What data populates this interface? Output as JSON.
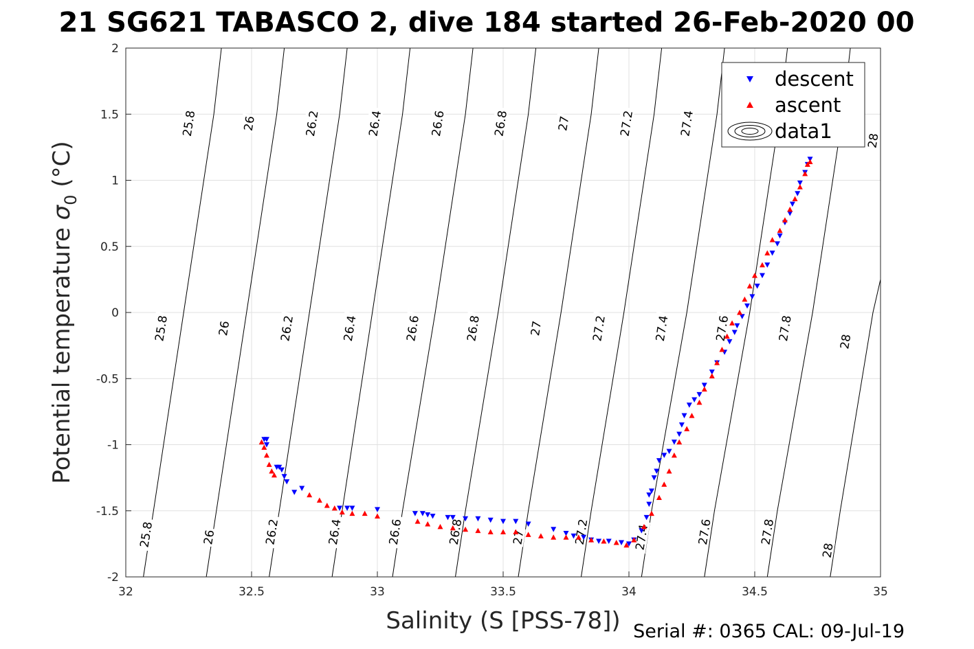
{
  "chart_data": {
    "type": "scatter",
    "title": "21 SG621 TABASCO 2, dive 184 started 26-Feb-2020 00",
    "xlabel": "Salinity (S [PSS-78])",
    "ylabel": "Potential temperature σ_0 (°C)",
    "ylabel_main": "Potential temperature ",
    "ylabel_sigma": "σ",
    "ylabel_sub": "0",
    "ylabel_unit": " (°C)",
    "xlim": [
      32,
      35
    ],
    "ylim": [
      -2,
      2
    ],
    "xticks": [
      "32",
      "32.5",
      "33",
      "33.5",
      "34",
      "34.5",
      "35"
    ],
    "yticks": [
      "-2",
      "-1.5",
      "-1",
      "-0.5",
      "0",
      "0.5",
      "1",
      "1.5",
      "2"
    ],
    "grid": true,
    "legend_position": "top-right",
    "legend": [
      "descent",
      "ascent",
      "data1"
    ],
    "footer": "Serial #: 0365  CAL: 09-Jul-19",
    "colors": {
      "descent": "#0000ff",
      "ascent": "#ff0000",
      "contour": "#000000",
      "grid": "#e0e0e0"
    },
    "isopycnals": [
      {
        "label": "25.8",
        "points": [
          [
            32.07,
            -2
          ],
          [
            32.11,
            -1.5
          ],
          [
            32.23,
            0
          ],
          [
            32.35,
            1.5
          ],
          [
            32.38,
            2
          ]
        ]
      },
      {
        "label": "26",
        "points": [
          [
            32.32,
            -2
          ],
          [
            32.36,
            -1.5
          ],
          [
            32.48,
            0
          ],
          [
            32.6,
            1.5
          ],
          [
            32.63,
            2
          ]
        ]
      },
      {
        "label": "26.2",
        "points": [
          [
            32.57,
            -2
          ],
          [
            32.61,
            -1.5
          ],
          [
            32.73,
            0
          ],
          [
            32.85,
            1.5
          ],
          [
            32.88,
            2
          ]
        ]
      },
      {
        "label": "26.4",
        "points": [
          [
            32.82,
            -2
          ],
          [
            32.86,
            -1.5
          ],
          [
            32.98,
            0
          ],
          [
            33.1,
            1.5
          ],
          [
            33.13,
            2
          ]
        ]
      },
      {
        "label": "26.6",
        "points": [
          [
            33.06,
            -2
          ],
          [
            33.1,
            -1.5
          ],
          [
            33.23,
            0
          ],
          [
            33.35,
            1.5
          ],
          [
            33.38,
            2
          ]
        ]
      },
      {
        "label": "26.8",
        "points": [
          [
            33.31,
            -2
          ],
          [
            33.35,
            -1.5
          ],
          [
            33.48,
            0
          ],
          [
            33.6,
            1.5
          ],
          [
            33.63,
            2
          ]
        ]
      },
      {
        "label": "27",
        "points": [
          [
            33.56,
            -2
          ],
          [
            33.6,
            -1.5
          ],
          [
            33.73,
            0
          ],
          [
            33.85,
            1.5
          ],
          [
            33.88,
            2
          ]
        ]
      },
      {
        "label": "27.2",
        "points": [
          [
            33.81,
            -2
          ],
          [
            33.85,
            -1.5
          ],
          [
            33.98,
            0
          ],
          [
            34.1,
            1.5
          ],
          [
            34.13,
            2
          ]
        ]
      },
      {
        "label": "27.4",
        "points": [
          [
            34.05,
            -2
          ],
          [
            34.09,
            -1.5
          ],
          [
            34.23,
            0
          ],
          [
            34.35,
            1.5
          ],
          [
            34.38,
            2
          ]
        ]
      },
      {
        "label": "27.6",
        "points": [
          [
            34.3,
            -2
          ],
          [
            34.34,
            -1.5
          ],
          [
            34.48,
            0
          ],
          [
            34.6,
            1.5
          ],
          [
            34.63,
            2
          ]
        ]
      },
      {
        "label": "27.8",
        "points": [
          [
            34.55,
            -2
          ],
          [
            34.59,
            -1.5
          ],
          [
            34.73,
            0
          ],
          [
            34.85,
            1.5
          ],
          [
            34.88,
            2
          ]
        ]
      },
      {
        "label": "28",
        "points": [
          [
            34.8,
            -2
          ],
          [
            34.84,
            -1.5
          ],
          [
            34.97,
            0
          ],
          [
            35.0,
            0.25
          ]
        ]
      }
    ],
    "isopycnal_top": [
      {
        "label": "25.8",
        "at": [
          32.25,
          1.43
        ]
      },
      {
        "label": "26",
        "at": [
          32.49,
          1.43
        ]
      },
      {
        "label": "26.2",
        "at": [
          32.74,
          1.43
        ]
      },
      {
        "label": "26.4",
        "at": [
          32.99,
          1.43
        ]
      },
      {
        "label": "26.6",
        "at": [
          33.24,
          1.43
        ]
      },
      {
        "label": "26.8",
        "at": [
          33.49,
          1.43
        ]
      },
      {
        "label": "27",
        "at": [
          33.74,
          1.43
        ]
      },
      {
        "label": "27.2",
        "at": [
          33.99,
          1.43
        ]
      },
      {
        "label": "27.4",
        "at": [
          34.23,
          1.43
        ]
      },
      {
        "label": "28",
        "at": [
          34.97,
          1.3
        ]
      }
    ],
    "isopycnal_mid": [
      {
        "label": "25.8",
        "at": [
          32.14,
          -0.12
        ]
      },
      {
        "label": "26",
        "at": [
          32.39,
          -0.12
        ]
      },
      {
        "label": "26.2",
        "at": [
          32.64,
          -0.12
        ]
      },
      {
        "label": "26.4",
        "at": [
          32.89,
          -0.12
        ]
      },
      {
        "label": "26.6",
        "at": [
          33.14,
          -0.12
        ]
      },
      {
        "label": "26.8",
        "at": [
          33.38,
          -0.12
        ]
      },
      {
        "label": "27",
        "at": [
          33.63,
          -0.12
        ]
      },
      {
        "label": "27.2",
        "at": [
          33.88,
          -0.12
        ]
      },
      {
        "label": "27.4",
        "at": [
          34.13,
          -0.12
        ]
      },
      {
        "label": "27.6",
        "at": [
          34.37,
          -0.12
        ]
      },
      {
        "label": "27.8",
        "at": [
          34.62,
          -0.12
        ]
      },
      {
        "label": "28",
        "at": [
          34.86,
          -0.22
        ]
      }
    ],
    "isopycnal_bottom": [
      {
        "label": "25.8",
        "at": [
          32.08,
          -1.68
        ]
      },
      {
        "label": "26",
        "at": [
          32.33,
          -1.7
        ]
      },
      {
        "label": "26.2",
        "at": [
          32.58,
          -1.66
        ]
      },
      {
        "label": "26.4",
        "at": [
          32.83,
          -1.66
        ]
      },
      {
        "label": "26.6",
        "at": [
          33.07,
          -1.66
        ]
      },
      {
        "label": "26.8",
        "at": [
          33.31,
          -1.66
        ]
      },
      {
        "label": "27",
        "at": [
          33.56,
          -1.7
        ]
      },
      {
        "label": "27.2",
        "at": [
          33.81,
          -1.66
        ]
      },
      {
        "label": "27.4",
        "at": [
          34.05,
          -1.7
        ]
      },
      {
        "label": "27.6",
        "at": [
          34.3,
          -1.66
        ]
      },
      {
        "label": "27.8",
        "at": [
          34.55,
          -1.66
        ]
      },
      {
        "label": "28",
        "at": [
          34.79,
          -1.8
        ]
      }
    ],
    "series": [
      {
        "name": "descent",
        "marker": "triangle-down",
        "points": [
          [
            32.55,
            -0.96
          ],
          [
            32.56,
            -0.96
          ],
          [
            32.56,
            -1.0
          ],
          [
            32.6,
            -1.17
          ],
          [
            32.61,
            -1.17
          ],
          [
            32.62,
            -1.19
          ],
          [
            32.63,
            -1.24
          ],
          [
            32.64,
            -1.28
          ],
          [
            32.67,
            -1.36
          ],
          [
            32.7,
            -1.33
          ],
          [
            32.85,
            -1.48
          ],
          [
            32.88,
            -1.48
          ],
          [
            32.9,
            -1.48
          ],
          [
            33.0,
            -1.49
          ],
          [
            33.15,
            -1.52
          ],
          [
            33.18,
            -1.52
          ],
          [
            33.2,
            -1.53
          ],
          [
            33.22,
            -1.54
          ],
          [
            33.28,
            -1.55
          ],
          [
            33.3,
            -1.55
          ],
          [
            33.35,
            -1.56
          ],
          [
            33.4,
            -1.56
          ],
          [
            33.45,
            -1.57
          ],
          [
            33.5,
            -1.58
          ],
          [
            33.55,
            -1.58
          ],
          [
            33.6,
            -1.6
          ],
          [
            33.7,
            -1.64
          ],
          [
            33.75,
            -1.67
          ],
          [
            33.78,
            -1.69
          ],
          [
            33.82,
            -1.7
          ],
          [
            33.85,
            -1.72
          ],
          [
            33.88,
            -1.73
          ],
          [
            33.92,
            -1.73
          ],
          [
            33.97,
            -1.74
          ],
          [
            34.0,
            -1.75
          ],
          [
            34.02,
            -1.72
          ],
          [
            34.05,
            -1.65
          ],
          [
            34.07,
            -1.55
          ],
          [
            34.08,
            -1.45
          ],
          [
            34.08,
            -1.38
          ],
          [
            34.09,
            -1.35
          ],
          [
            34.1,
            -1.25
          ],
          [
            34.11,
            -1.2
          ],
          [
            34.12,
            -1.12
          ],
          [
            34.14,
            -1.08
          ],
          [
            34.16,
            -1.05
          ],
          [
            34.18,
            -0.98
          ],
          [
            34.2,
            -0.92
          ],
          [
            34.21,
            -0.85
          ],
          [
            34.22,
            -0.78
          ],
          [
            34.24,
            -0.7
          ],
          [
            34.26,
            -0.66
          ],
          [
            34.28,
            -0.62
          ],
          [
            34.3,
            -0.55
          ],
          [
            34.33,
            -0.45
          ],
          [
            34.35,
            -0.38
          ],
          [
            34.38,
            -0.3
          ],
          [
            34.4,
            -0.22
          ],
          [
            34.42,
            -0.15
          ],
          [
            34.43,
            -0.1
          ],
          [
            34.45,
            -0.03
          ],
          [
            34.47,
            0.05
          ],
          [
            34.49,
            0.12
          ],
          [
            34.51,
            0.2
          ],
          [
            34.53,
            0.28
          ],
          [
            34.55,
            0.36
          ],
          [
            34.57,
            0.45
          ],
          [
            34.59,
            0.52
          ],
          [
            34.6,
            0.58
          ],
          [
            34.62,
            0.68
          ],
          [
            34.64,
            0.75
          ],
          [
            34.65,
            0.82
          ],
          [
            34.67,
            0.9
          ],
          [
            34.68,
            0.98
          ],
          [
            34.7,
            1.06
          ],
          [
            34.71,
            1.12
          ],
          [
            34.72,
            1.16
          ]
        ]
      },
      {
        "name": "ascent",
        "marker": "triangle-up",
        "points": [
          [
            32.54,
            -0.98
          ],
          [
            32.55,
            -1.02
          ],
          [
            32.56,
            -1.08
          ],
          [
            32.57,
            -1.15
          ],
          [
            32.58,
            -1.2
          ],
          [
            32.59,
            -1.23
          ],
          [
            32.73,
            -1.38
          ],
          [
            32.77,
            -1.42
          ],
          [
            32.8,
            -1.46
          ],
          [
            32.83,
            -1.48
          ],
          [
            32.86,
            -1.51
          ],
          [
            32.9,
            -1.52
          ],
          [
            32.95,
            -1.52
          ],
          [
            33.0,
            -1.54
          ],
          [
            33.16,
            -1.58
          ],
          [
            33.2,
            -1.6
          ],
          [
            33.25,
            -1.62
          ],
          [
            33.3,
            -1.63
          ],
          [
            33.35,
            -1.64
          ],
          [
            33.4,
            -1.65
          ],
          [
            33.45,
            -1.66
          ],
          [
            33.5,
            -1.66
          ],
          [
            33.55,
            -1.66
          ],
          [
            33.6,
            -1.68
          ],
          [
            33.65,
            -1.69
          ],
          [
            33.7,
            -1.7
          ],
          [
            33.75,
            -1.7
          ],
          [
            33.8,
            -1.7
          ],
          [
            33.85,
            -1.72
          ],
          [
            33.9,
            -1.73
          ],
          [
            33.95,
            -1.74
          ],
          [
            33.99,
            -1.76
          ],
          [
            34.02,
            -1.72
          ],
          [
            34.06,
            -1.62
          ],
          [
            34.09,
            -1.52
          ],
          [
            34.12,
            -1.4
          ],
          [
            34.14,
            -1.3
          ],
          [
            34.16,
            -1.2
          ],
          [
            34.18,
            -1.08
          ],
          [
            34.2,
            -0.98
          ],
          [
            34.23,
            -0.88
          ],
          [
            34.25,
            -0.78
          ],
          [
            34.28,
            -0.68
          ],
          [
            34.3,
            -0.58
          ],
          [
            34.33,
            -0.48
          ],
          [
            34.35,
            -0.38
          ],
          [
            34.37,
            -0.28
          ],
          [
            34.39,
            -0.18
          ],
          [
            34.41,
            -0.08
          ],
          [
            34.44,
            0.0
          ],
          [
            34.46,
            0.1
          ],
          [
            34.48,
            0.2
          ],
          [
            34.5,
            0.28
          ],
          [
            34.53,
            0.36
          ],
          [
            34.55,
            0.45
          ],
          [
            34.57,
            0.55
          ],
          [
            34.6,
            0.62
          ],
          [
            34.62,
            0.7
          ],
          [
            34.64,
            0.78
          ],
          [
            34.66,
            0.86
          ],
          [
            34.68,
            0.95
          ],
          [
            34.7,
            1.05
          ],
          [
            34.71,
            1.12
          ],
          [
            34.72,
            1.14
          ]
        ]
      }
    ]
  }
}
